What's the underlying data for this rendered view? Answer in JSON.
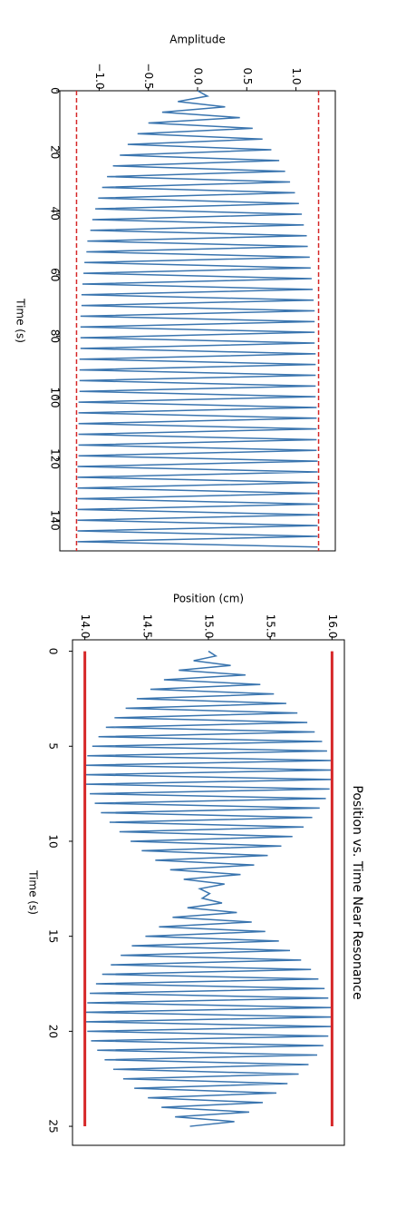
{
  "chart_data": [
    {
      "type": "line",
      "x_label": "Time (s)",
      "y_label": "Amplitude",
      "xlim": [
        0,
        150
      ],
      "ylim": [
        -1.4,
        1.4
      ],
      "xticks": [
        0,
        20,
        40,
        60,
        80,
        100,
        120,
        140
      ],
      "yticks": [
        {
          "value": -1.0,
          "label": "−1.0"
        },
        {
          "value": -0.5,
          "label": "−0.5"
        },
        {
          "value": 0.0,
          "label": "0.0"
        },
        {
          "value": 0.5,
          "label": "0.5"
        },
        {
          "value": 1.0,
          "label": "1.0"
        }
      ],
      "color": "#3a75af",
      "x": [
        0,
        1.75,
        3.5,
        5.25,
        7,
        8.75,
        10.5,
        12.25,
        14,
        15.75,
        17.5,
        19.25,
        21,
        22.75,
        24.5,
        26.25,
        28,
        29.75,
        31.5,
        33.25,
        35,
        36.75,
        38.5,
        40.25,
        42,
        43.75,
        45.5,
        47.25,
        49,
        50.75,
        52.5,
        54.25,
        56,
        57.75,
        59.5,
        61.25,
        63,
        64.75,
        66.5,
        68.25,
        70,
        71.75,
        73.5,
        75.25,
        77,
        78.75,
        80.5,
        82.25,
        84,
        85.75,
        87.5,
        89.25,
        91,
        92.75,
        94.5,
        96.25,
        98,
        99.75,
        101.5,
        103.25,
        105,
        106.75,
        108.5,
        110.25,
        112,
        113.75,
        115.5,
        117.25,
        119,
        120.75,
        122.5,
        124.25,
        126,
        127.75,
        129.5,
        131.25,
        133,
        134.75,
        136.5,
        138.25,
        140,
        141.75,
        143.5,
        145.25,
        147,
        148.75
      ],
      "values": [
        0,
        0.1,
        -0.2,
        0.28,
        -0.36,
        0.43,
        -0.5,
        0.56,
        -0.61,
        0.66,
        -0.71,
        0.75,
        -0.79,
        0.83,
        -0.86,
        0.89,
        -0.92,
        0.94,
        -0.97,
        0.99,
        -1.01,
        1.03,
        -1.04,
        1.06,
        -1.07,
        1.08,
        -1.09,
        1.11,
        -1.12,
        1.12,
        -1.13,
        1.14,
        -1.15,
        1.15,
        -1.16,
        1.16,
        -1.17,
        1.17,
        -1.18,
        1.18,
        -1.18,
        1.19,
        -1.19,
        1.19,
        -1.19,
        1.19,
        -1.19,
        1.19,
        -1.19,
        1.2,
        -1.2,
        1.2,
        -1.2,
        1.2,
        -1.2,
        1.2,
        -1.2,
        1.2,
        -1.21,
        1.21,
        -1.21,
        1.21,
        -1.21,
        1.21,
        -1.21,
        1.21,
        -1.21,
        1.21,
        -1.21,
        1.22,
        -1.22,
        1.22,
        -1.22,
        1.22,
        -1.22,
        1.22,
        -1.22,
        1.22,
        -1.22,
        1.22,
        -1.22,
        1.22,
        -1.22,
        1.22,
        -1.22,
        1.22
      ],
      "reference_lines": [
        {
          "value": -1.23,
          "color": "#d62728",
          "style": "dashed"
        },
        {
          "value": 1.23,
          "color": "#d62728",
          "style": "dashed"
        }
      ]
    },
    {
      "type": "line",
      "title": "Position vs. Time Near Resonance",
      "x_label": "Time (s)",
      "y_label": "Position (cm)",
      "xlim": [
        -0.6,
        26.0
      ],
      "ylim": [
        13.9,
        16.1
      ],
      "xticks": [
        0,
        5,
        10,
        15,
        20,
        25
      ],
      "yticks": [
        {
          "value": 14.0,
          "label": "14.0"
        },
        {
          "value": 14.5,
          "label": "14.5"
        },
        {
          "value": 15.0,
          "label": "15.0"
        },
        {
          "value": 15.5,
          "label": "15.5"
        },
        {
          "value": 16.0,
          "label": "16.0"
        }
      ],
      "color": "#3a75af",
      "x": [
        0,
        0.25,
        0.5,
        0.75,
        1,
        1.25,
        1.5,
        1.75,
        2,
        2.25,
        2.5,
        2.75,
        3,
        3.25,
        3.5,
        3.75,
        4,
        4.25,
        4.5,
        4.75,
        5,
        5.25,
        5.5,
        5.75,
        6,
        6.25,
        6.5,
        6.75,
        7,
        7.25,
        7.5,
        7.75,
        8,
        8.25,
        8.5,
        8.75,
        9,
        9.25,
        9.5,
        9.75,
        10,
        10.25,
        10.5,
        10.75,
        11,
        11.25,
        11.5,
        11.75,
        12,
        12.25,
        12.5,
        12.75,
        13,
        13.25,
        13.5,
        13.75,
        14,
        14.25,
        14.5,
        14.75,
        15,
        15.25,
        15.5,
        15.75,
        16,
        16.25,
        16.5,
        16.75,
        17,
        17.25,
        17.5,
        17.75,
        18,
        18.25,
        18.5,
        18.75,
        19,
        19.25,
        19.5,
        19.75,
        20,
        20.25,
        20.5,
        20.75,
        21,
        21.25,
        21.5,
        21.75,
        22,
        22.25,
        22.5,
        22.75,
        23,
        23.25,
        23.5,
        23.75,
        24,
        24.25,
        24.5,
        24.75,
        25
      ],
      "values": [
        15.0,
        15.06,
        14.88,
        15.18,
        14.76,
        15.3,
        14.64,
        15.42,
        14.53,
        15.53,
        14.42,
        15.63,
        14.33,
        15.72,
        14.24,
        15.8,
        14.17,
        15.86,
        14.11,
        15.92,
        14.06,
        15.96,
        14.02,
        15.99,
        14.0,
        16.0,
        14.0,
        16.0,
        14.01,
        15.98,
        14.04,
        15.95,
        14.08,
        15.9,
        14.13,
        15.84,
        14.2,
        15.77,
        14.28,
        15.68,
        14.37,
        15.59,
        14.46,
        15.48,
        14.57,
        15.37,
        14.69,
        15.26,
        14.8,
        15.13,
        14.93,
        15.01,
        14.95,
        15.11,
        14.83,
        15.23,
        14.71,
        15.35,
        14.6,
        15.46,
        14.49,
        15.57,
        14.38,
        15.66,
        14.29,
        15.75,
        14.21,
        15.83,
        14.14,
        15.89,
        14.09,
        15.94,
        14.04,
        15.97,
        14.02,
        15.99,
        14.0,
        16.0,
        14.0,
        15.99,
        14.02,
        15.97,
        14.05,
        15.93,
        14.1,
        15.88,
        14.16,
        15.81,
        14.23,
        15.73,
        14.31,
        15.64,
        14.4,
        15.55,
        14.51,
        15.44,
        14.62,
        15.33,
        14.73,
        15.21,
        14.85
      ],
      "reference_lines": [
        {
          "value": 14.0,
          "xmin": 0,
          "xmax": 25,
          "color": "#d62728",
          "style": "solid"
        },
        {
          "value": 16.0,
          "xmin": 0,
          "xmax": 25,
          "color": "#d62728",
          "style": "solid"
        }
      ]
    }
  ]
}
